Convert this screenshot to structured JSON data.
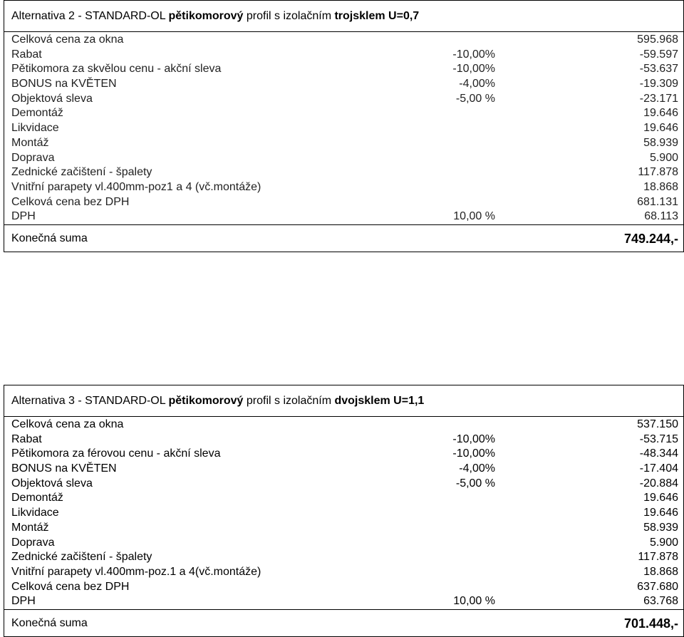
{
  "alt2": {
    "title_prefix": "Alternativa 2 - STANDARD-OL ",
    "title_bold1": "pětikomorový",
    "title_middle": " profil s izolačním ",
    "title_bold2": "trojsklem U=0,7",
    "rows": [
      {
        "label": "Celková cena za okna",
        "pct": "",
        "value": "595.968"
      },
      {
        "label": "Rabat",
        "pct": "-10,00%",
        "value": "-59.597"
      },
      {
        "label": "Pětikomora za skvělou cenu - akční sleva",
        "pct": "-10,00%",
        "value": "-53.637"
      },
      {
        "label": "BONUS na KVĚTEN",
        "pct": "-4,00%",
        "value": "-19.309"
      },
      {
        "label": "Objektová sleva",
        "pct": "-5,00 %",
        "value": "-23.171"
      },
      {
        "label": "Demontáž",
        "pct": "",
        "value": "19.646"
      },
      {
        "label": "Likvidace",
        "pct": "",
        "value": "19.646"
      },
      {
        "label": "Montáž",
        "pct": "",
        "value": "58.939"
      },
      {
        "label": "Doprava",
        "pct": "",
        "value": "5.900"
      },
      {
        "label": "Zednické začištení - špalety",
        "pct": "",
        "value": "117.878"
      },
      {
        "label": "Vnitřní parapety vl.400mm-poz1 a 4 (vč.montáže)",
        "pct": "",
        "value": "18.868"
      },
      {
        "label": "Celková cena bez DPH",
        "pct": "",
        "value": "681.131"
      },
      {
        "label": "DPH",
        "pct": "10,00 %",
        "value": "68.113"
      }
    ],
    "final_label": "Konečná suma",
    "final_value": "749.244,-"
  },
  "alt3": {
    "title_prefix": "Alternativa 3 - STANDARD-OL ",
    "title_bold1": "pětikomorový",
    "title_middle": " profil s izolačním ",
    "title_bold2": "dvojsklem U=1,1",
    "rows": [
      {
        "label": "Celková cena za okna",
        "pct": "",
        "value": "537.150"
      },
      {
        "label": "Rabat",
        "pct": "-10,00%",
        "value": "-53.715"
      },
      {
        "label": "Pětikomora za férovou cenu - akční sleva",
        "pct": "-10,00%",
        "value": "-48.344"
      },
      {
        "label": "BONUS na KVĚTEN",
        "pct": "-4,00%",
        "value": "-17.404"
      },
      {
        "label": "Objektová sleva",
        "pct": "-5,00 %",
        "value": "-20.884"
      },
      {
        "label": "Demontáž",
        "pct": "",
        "value": "19.646"
      },
      {
        "label": "Likvidace",
        "pct": "",
        "value": "19.646"
      },
      {
        "label": "Montáž",
        "pct": "",
        "value": "58.939"
      },
      {
        "label": "Doprava",
        "pct": "",
        "value": "5.900"
      },
      {
        "label": "Zednické začištení - špalety",
        "pct": "",
        "value": "117.878"
      },
      {
        "label": "Vnitřní parapety vl.400mm-poz.1 a 4(vč.montáže)",
        "pct": "",
        "value": "18.868"
      },
      {
        "label": "Celková cena bez DPH",
        "pct": "",
        "value": "637.680"
      },
      {
        "label": "DPH",
        "pct": "10,00 %",
        "value": "63.768"
      }
    ],
    "final_label": "Konečná suma",
    "final_value": "701.448,-"
  }
}
